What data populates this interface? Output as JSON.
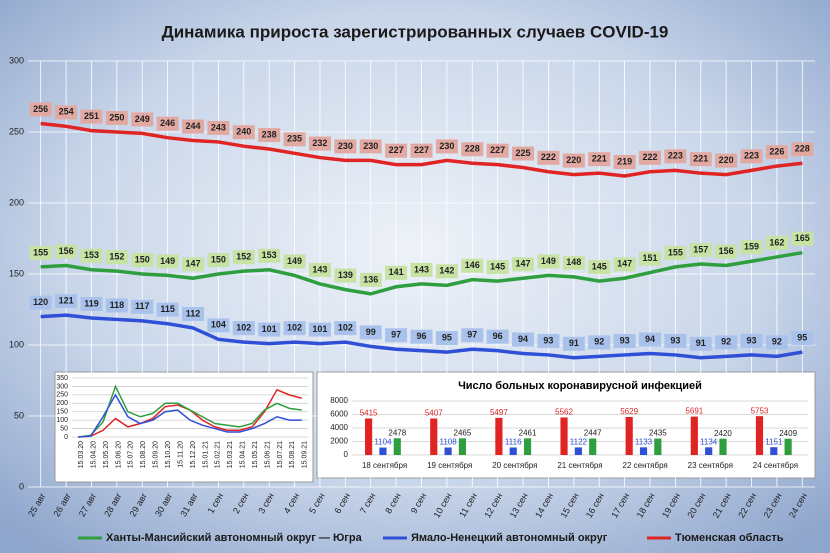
{
  "chart_data": [
    {
      "type": "line",
      "title": "Динамика прироста зарегистрированных случаев COVID-19",
      "categories": [
        "25 авг",
        "26 авг",
        "27 авг",
        "28 авг",
        "29 авг",
        "30 авг",
        "31 авг",
        "1 сен",
        "2 сен",
        "3 сен",
        "4 сен",
        "5 сен",
        "6 сен",
        "7 сен",
        "8 сен",
        "9 сен",
        "10 сен",
        "11 сен",
        "12 сен",
        "13 сен",
        "14 сен",
        "15 сен",
        "16 сен",
        "17 сен",
        "18 сен",
        "19 сен",
        "20 сен",
        "21 сен",
        "22 сен",
        "23 сен",
        "24 сен"
      ],
      "series": [
        {
          "name": "Ханты-Мансийский автономный округ — Югра",
          "color": "#2e9e3e",
          "values": [
            155,
            156,
            153,
            152,
            150,
            149,
            147,
            150,
            152,
            153,
            149,
            143,
            139,
            136,
            141,
            143,
            142,
            146,
            145,
            147,
            149,
            148,
            145,
            147,
            151,
            155,
            157,
            156,
            159,
            162,
            165
          ]
        },
        {
          "name": "Ямало-Ненецкий автономный округ",
          "color": "#2f4fd6",
          "values": [
            120,
            121,
            119,
            118,
            117,
            115,
            112,
            104,
            102,
            101,
            102,
            101,
            102,
            99,
            97,
            96,
            95,
            97,
            96,
            94,
            93,
            91,
            92,
            93,
            94,
            93,
            91,
            92,
            93,
            92,
            95
          ]
        },
        {
          "name": "Тюменская область",
          "color": "#e02424",
          "values": [
            256,
            254,
            251,
            250,
            249,
            246,
            244,
            243,
            240,
            238,
            235,
            232,
            230,
            230,
            227,
            227,
            230,
            228,
            227,
            225,
            222,
            220,
            221,
            219,
            222,
            223,
            221,
            220,
            223,
            226,
            228
          ]
        }
      ],
      "ylim": [
        0,
        300
      ],
      "yticks": [
        0,
        50,
        100,
        150,
        200,
        250,
        300
      ],
      "grid": true,
      "legend": "bottom"
    },
    {
      "type": "line",
      "categories": [
        "15.03.20",
        "15.04.20",
        "15.05.20",
        "15.06.20",
        "15.07.20",
        "15.08.20",
        "15.09.20",
        "15.10.20",
        "15.11.20",
        "15.12.20",
        "15.01.21",
        "15.02.21",
        "15.03.21",
        "15.04.21",
        "15.05.21",
        "15.06.21",
        "15.07.21",
        "15.08.21",
        "15.09.21"
      ],
      "series": [
        {
          "color": "#e02424",
          "values": [
            0,
            5,
            40,
            110,
            60,
            80,
            110,
            180,
            190,
            160,
            100,
            60,
            40,
            40,
            60,
            150,
            280,
            250,
            230
          ]
        },
        {
          "color": "#2e9e3e",
          "values": [
            0,
            10,
            90,
            300,
            150,
            120,
            140,
            200,
            200,
            160,
            120,
            80,
            70,
            60,
            80,
            160,
            200,
            170,
            160
          ]
        },
        {
          "color": "#2f4fd6",
          "values": [
            0,
            5,
            120,
            250,
            120,
            80,
            100,
            150,
            160,
            100,
            70,
            50,
            30,
            30,
            50,
            80,
            120,
            100,
            100
          ]
        }
      ],
      "ylim": [
        0,
        350
      ],
      "yticks": [
        0,
        50,
        100,
        150,
        200,
        250,
        300,
        350
      ],
      "grid": true
    },
    {
      "type": "bar",
      "title": "Число больных коронавирусной  инфекцией",
      "categories": [
        "18 сентября",
        "19 сентября",
        "20 сентября",
        "21 сентября",
        "22 сентября",
        "23 сентября",
        "24 сентября"
      ],
      "series": [
        {
          "color": "#e02424",
          "values": [
            5415,
            5407,
            5497,
            5562,
            5629,
            5691,
            5753
          ]
        },
        {
          "color": "#2f4fd6",
          "values": [
            1104,
            1108,
            1116,
            1122,
            1133,
            1134,
            1151
          ]
        },
        {
          "color": "#2e9e3e",
          "values": [
            2478,
            2465,
            2461,
            2447,
            2435,
            2420,
            2409
          ]
        }
      ],
      "ylim": [
        0,
        8000
      ],
      "yticks": [
        0,
        2000,
        4000,
        6000,
        8000
      ],
      "grid": true
    }
  ]
}
